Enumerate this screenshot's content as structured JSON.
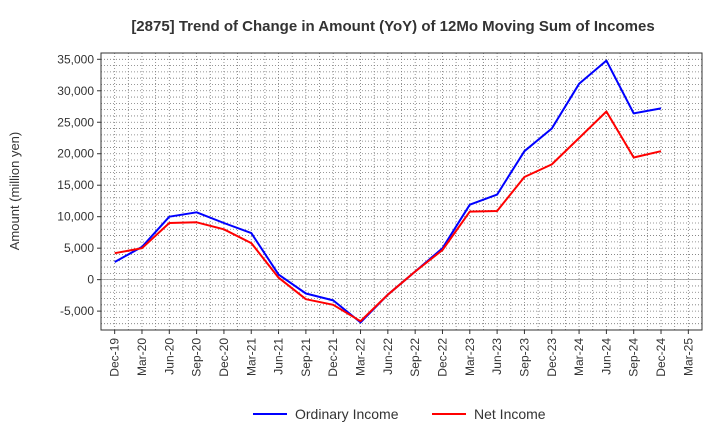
{
  "chart_data": {
    "type": "line",
    "title": "[2875]  Trend of Change in Amount (YoY) of 12Mo Moving Sum of Incomes",
    "ylabel": "Amount (million yen)",
    "xlabel": "",
    "ylim": [
      -8000,
      36000
    ],
    "yticks": [
      -5000,
      0,
      5000,
      10000,
      15000,
      20000,
      25000,
      30000,
      35000
    ],
    "ytick_labels": [
      "-5,000",
      "0",
      "5,000",
      "10,000",
      "15,000",
      "20,000",
      "25,000",
      "30,000",
      "35,000"
    ],
    "categories": [
      "Dec-19",
      "Mar-20",
      "Jun-20",
      "Sep-20",
      "Dec-20",
      "Mar-21",
      "Jun-21",
      "Sep-21",
      "Dec-21",
      "Mar-22",
      "Jun-22",
      "Sep-22",
      "Dec-22",
      "Mar-23",
      "Jun-23",
      "Sep-23",
      "Dec-23",
      "Mar-24",
      "Jun-24",
      "Sep-24",
      "Dec-24",
      "Mar-25"
    ],
    "grid": true,
    "legend_position": "bottom",
    "series": [
      {
        "name": "Ordinary Income",
        "color": "#0000ff",
        "values": [
          2800,
          5200,
          10000,
          10700,
          9000,
          7400,
          800,
          -2200,
          -3300,
          -6800,
          -2400,
          1300,
          5000,
          11900,
          13500,
          20400,
          24000,
          31100,
          34800,
          26400,
          27200,
          null
        ]
      },
      {
        "name": "Net Income",
        "color": "#ff0000",
        "values": [
          4200,
          5000,
          9000,
          9100,
          8000,
          5800,
          300,
          -3100,
          -4000,
          -6600,
          -2400,
          1300,
          4700,
          10800,
          10900,
          16300,
          18300,
          22500,
          26700,
          19400,
          20400,
          null
        ]
      }
    ]
  }
}
